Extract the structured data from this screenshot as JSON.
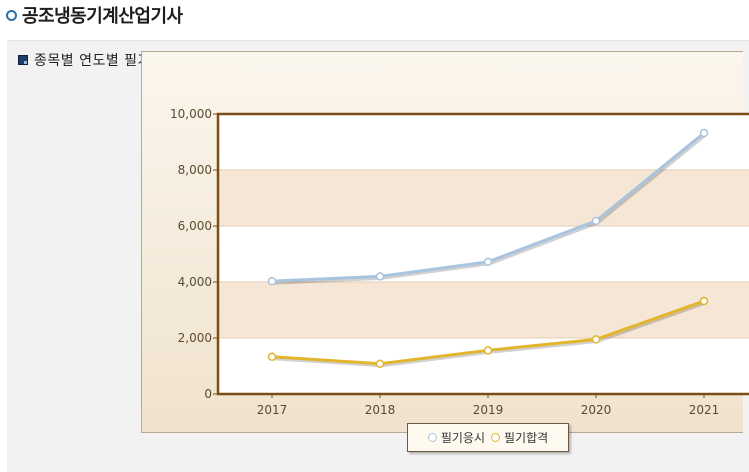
{
  "page": {
    "title": "공조냉동기계산업기사",
    "section_heading": "종목별 연도별 필기 현황"
  },
  "colors": {
    "applicants": "#a8c4de",
    "passers": "#e2b52d",
    "plot_border": "#7a4e16",
    "band": "#f5e6d6"
  },
  "chart_data": {
    "type": "line",
    "categories": [
      "2017",
      "2018",
      "2019",
      "2020",
      "2021"
    ],
    "ylim": [
      0,
      10000
    ],
    "yticks": [
      "10,000",
      "8,000",
      "6,000",
      "4,000",
      "2,000",
      "0"
    ],
    "ytick_values": [
      10000,
      8000,
      6000,
      4000,
      2000,
      0
    ],
    "legend_position": "bottom",
    "series": [
      {
        "name": "필기응시",
        "values": [
          4030,
          4200,
          4720,
          6180,
          9320
        ],
        "color": "#a8c4de"
      },
      {
        "name": "필기합격",
        "values": [
          1330,
          1080,
          1560,
          1950,
          3320
        ],
        "color": "#e2b52d"
      }
    ]
  }
}
